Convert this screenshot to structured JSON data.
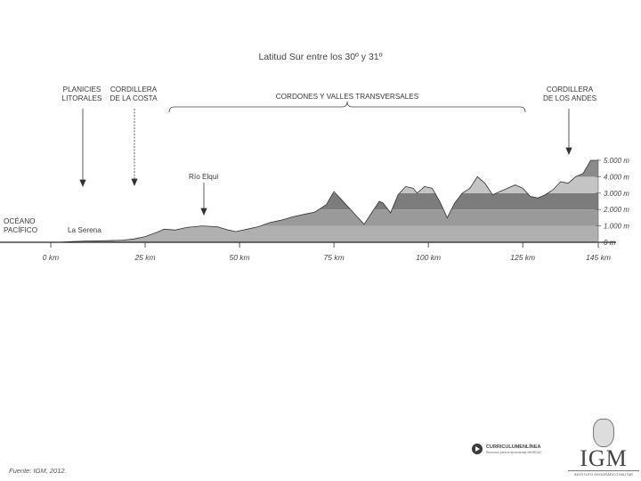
{
  "title": "Latitud Sur entre los 30º y 31º",
  "region_labels": {
    "planicies": [
      "PLANICIES",
      "LITORALES"
    ],
    "cordillera_costa": [
      "CORDILLERA",
      "DE LA COSTA"
    ],
    "cordones": "CORDONES Y VALLES TRANSVERSALES",
    "cordillera_andes": [
      "CORDILLERA",
      "DE LOS ANDES"
    ]
  },
  "place_labels": {
    "oceano": [
      "OCÉANO",
      "PACÍFICO"
    ],
    "la_serena": "La Serena",
    "rio_elqui": "Río Elqui"
  },
  "chart_data": {
    "type": "area",
    "xlabel": "",
    "ylabel": "",
    "x_ticks": [
      "0 km",
      "25 km",
      "50 km",
      "75 km",
      "100 km",
      "125 km",
      "145 km"
    ],
    "x_tick_values": [
      0,
      25,
      50,
      75,
      100,
      125,
      145
    ],
    "y_ticks": [
      "0 m",
      "1.000 m",
      "2.000 m",
      "3.000 m",
      "4.000 m",
      "5.000 m"
    ],
    "y_tick_values": [
      0,
      1000,
      2000,
      3000,
      4000,
      5000
    ],
    "xlim": [
      -10,
      145
    ],
    "ylim": [
      0,
      5000
    ],
    "band_colors": [
      "#b0b0b0",
      "#9a9a9a",
      "#7c7c7c",
      "#c4c4c4",
      "#8a8a8a",
      "#4a4a4a"
    ],
    "profile": [
      {
        "x": -10,
        "y": 0
      },
      {
        "x": 0,
        "y": 0
      },
      {
        "x": 3,
        "y": 10
      },
      {
        "x": 6,
        "y": 50
      },
      {
        "x": 10,
        "y": 80
      },
      {
        "x": 15,
        "y": 100
      },
      {
        "x": 19,
        "y": 130
      },
      {
        "x": 22,
        "y": 200
      },
      {
        "x": 25,
        "y": 350
      },
      {
        "x": 28,
        "y": 600
      },
      {
        "x": 30,
        "y": 800
      },
      {
        "x": 33,
        "y": 750
      },
      {
        "x": 36,
        "y": 900
      },
      {
        "x": 40,
        "y": 1000
      },
      {
        "x": 44,
        "y": 950
      },
      {
        "x": 47,
        "y": 750
      },
      {
        "x": 49,
        "y": 650
      },
      {
        "x": 52,
        "y": 800
      },
      {
        "x": 55,
        "y": 950
      },
      {
        "x": 58,
        "y": 1200
      },
      {
        "x": 61,
        "y": 1350
      },
      {
        "x": 64,
        "y": 1550
      },
      {
        "x": 67,
        "y": 1700
      },
      {
        "x": 70,
        "y": 1850
      },
      {
        "x": 73,
        "y": 2300
      },
      {
        "x": 75,
        "y": 3100
      },
      {
        "x": 77,
        "y": 2600
      },
      {
        "x": 79,
        "y": 2100
      },
      {
        "x": 81,
        "y": 1600
      },
      {
        "x": 83,
        "y": 1100
      },
      {
        "x": 85,
        "y": 1800
      },
      {
        "x": 87,
        "y": 2500
      },
      {
        "x": 88,
        "y": 2400
      },
      {
        "x": 90,
        "y": 1800
      },
      {
        "x": 92,
        "y": 2900
      },
      {
        "x": 94,
        "y": 3400
      },
      {
        "x": 96,
        "y": 3300
      },
      {
        "x": 97,
        "y": 3000
      },
      {
        "x": 99,
        "y": 3400
      },
      {
        "x": 101,
        "y": 3300
      },
      {
        "x": 103,
        "y": 2500
      },
      {
        "x": 105,
        "y": 1500
      },
      {
        "x": 107,
        "y": 2400
      },
      {
        "x": 109,
        "y": 3000
      },
      {
        "x": 111,
        "y": 3300
      },
      {
        "x": 113,
        "y": 4000
      },
      {
        "x": 115,
        "y": 3600
      },
      {
        "x": 117,
        "y": 2900
      },
      {
        "x": 119,
        "y": 3100
      },
      {
        "x": 121,
        "y": 3300
      },
      {
        "x": 123,
        "y": 3500
      },
      {
        "x": 125,
        "y": 3300
      },
      {
        "x": 127,
        "y": 2800
      },
      {
        "x": 129,
        "y": 2700
      },
      {
        "x": 131,
        "y": 2900
      },
      {
        "x": 133,
        "y": 3200
      },
      {
        "x": 135,
        "y": 3700
      },
      {
        "x": 137,
        "y": 3600
      },
      {
        "x": 139,
        "y": 4000
      },
      {
        "x": 141,
        "y": 4200
      },
      {
        "x": 143,
        "y": 5000
      },
      {
        "x": 145,
        "y": 5000
      }
    ]
  },
  "source": "Fuente: IGM, 2012.",
  "currículum": {
    "name": "CURRICULUMENLÍNEA",
    "tagline": "Recursos para el aprendizaje MINEDUC"
  },
  "igm": {
    "letters": "IGM",
    "name": "INSTITUTO GEOGRÁFICO MILITAR"
  }
}
